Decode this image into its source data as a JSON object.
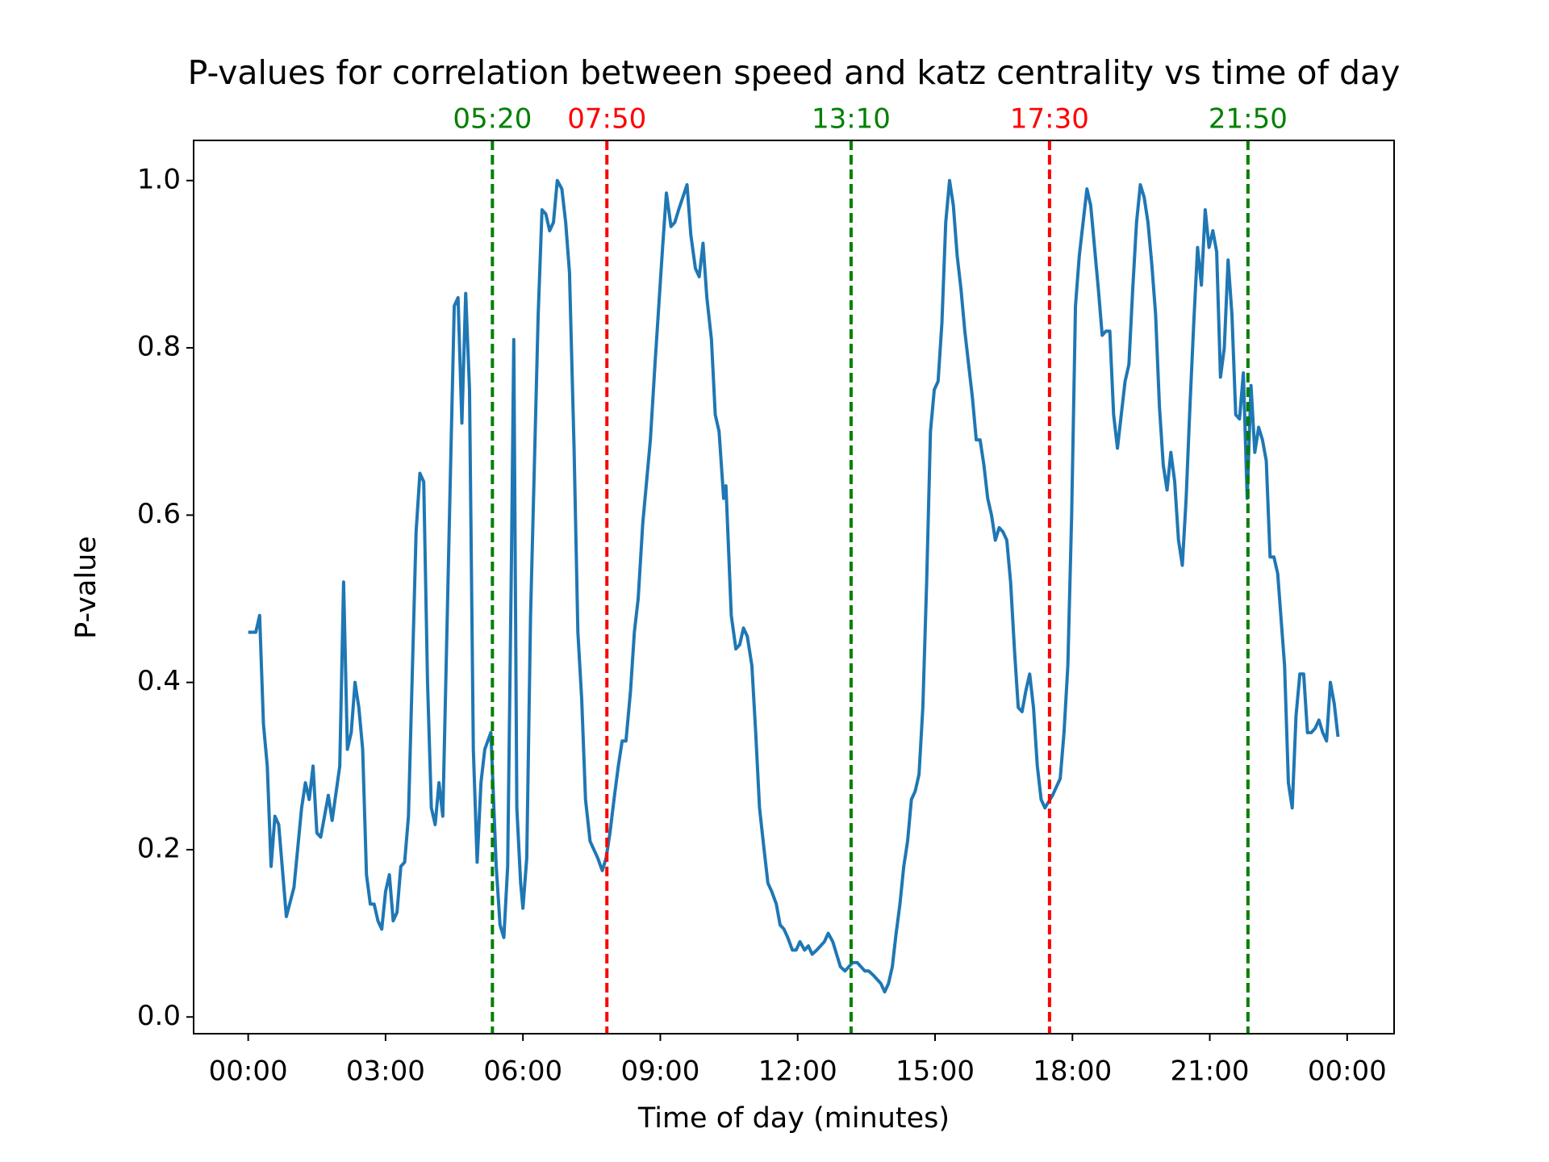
{
  "chart_data": {
    "type": "line",
    "title": "P-values for correlation between speed and katz centrality vs time of day",
    "x_label": "Time of day (minutes)",
    "y_label": "P-value",
    "x": [
      0,
      10,
      15,
      20,
      25,
      30,
      35,
      40,
      50,
      60,
      70,
      75,
      80,
      85,
      90,
      95,
      105,
      110,
      120,
      125,
      130,
      135,
      140,
      145,
      150,
      155,
      160,
      165,
      170,
      175,
      180,
      185,
      190,
      195,
      200,
      205,
      210,
      220,
      225,
      230,
      235,
      240,
      245,
      250,
      255,
      265,
      270,
      275,
      280,
      285,
      290,
      295,
      300,
      305,
      310,
      318,
      325,
      330,
      335,
      340,
      345,
      348,
      352,
      357,
      360,
      365,
      370,
      375,
      380,
      385,
      390,
      395,
      400,
      405,
      411,
      416,
      421,
      427,
      432,
      437,
      442,
      448,
      458,
      464,
      469,
      474,
      480,
      485,
      490,
      495,
      501,
      506,
      511,
      517,
      522,
      527,
      533,
      538,
      543,
      548,
      554,
      559,
      564,
      575,
      580,
      586,
      591,
      596,
      601,
      607,
      612,
      617,
      623,
      626,
      633,
      639,
      644,
      649,
      654,
      660,
      665,
      670,
      676,
      681,
      686,
      692,
      697,
      702,
      707,
      713,
      718,
      723,
      729,
      734,
      739,
      745,
      750,
      755,
      760,
      766,
      771,
      776,
      782,
      787,
      792,
      798,
      803,
      808,
      813,
      819,
      824,
      829,
      834,
      839,
      844,
      849,
      854,
      859,
      864,
      869,
      874,
      879,
      884,
      889,
      894,
      899,
      904,
      909,
      914,
      919,
      924,
      929,
      934,
      939,
      944,
      949,
      954,
      959,
      964,
      969,
      974,
      979,
      984,
      989,
      994,
      999,
      1004,
      1009,
      1014,
      1019,
      1024,
      1029,
      1034,
      1039,
      1044,
      1054,
      1064,
      1069,
      1074,
      1079,
      1084,
      1089,
      1094,
      1099,
      1104,
      1109,
      1114,
      1119,
      1124,
      1129,
      1134,
      1139,
      1144,
      1149,
      1154,
      1159,
      1164,
      1169,
      1174,
      1179,
      1184,
      1189,
      1194,
      1199,
      1204,
      1209,
      1214,
      1219,
      1224,
      1229,
      1234,
      1239,
      1244,
      1249,
      1254,
      1259,
      1264,
      1269,
      1274,
      1279,
      1284,
      1289,
      1294,
      1299,
      1304,
      1309,
      1314,
      1319,
      1324,
      1329,
      1334,
      1339,
      1344,
      1349,
      1358,
      1363,
      1368,
      1373,
      1378,
      1383,
      1388,
      1393,
      1398,
      1403,
      1408,
      1413,
      1418,
      1423,
      1428
    ],
    "series": [
      {
        "color": "#1f77b4",
        "values": [
          0.46,
          0.46,
          0.48,
          0.35,
          0.3,
          0.18,
          0.24,
          0.23,
          0.12,
          0.155,
          0.25,
          0.28,
          0.26,
          0.3,
          0.22,
          0.215,
          0.265,
          0.235,
          0.3,
          0.52,
          0.32,
          0.34,
          0.4,
          0.37,
          0.32,
          0.17,
          0.135,
          0.135,
          0.115,
          0.105,
          0.15,
          0.17,
          0.115,
          0.125,
          0.18,
          0.185,
          0.24,
          0.58,
          0.65,
          0.64,
          0.4,
          0.25,
          0.23,
          0.28,
          0.24,
          0.65,
          0.85,
          0.86,
          0.71,
          0.865,
          0.75,
          0.32,
          0.185,
          0.28,
          0.32,
          0.34,
          0.18,
          0.11,
          0.095,
          0.18,
          0.55,
          0.81,
          0.25,
          0.16,
          0.13,
          0.19,
          0.48,
          0.66,
          0.84,
          0.965,
          0.96,
          0.94,
          0.95,
          1.0,
          0.99,
          0.95,
          0.89,
          0.68,
          0.46,
          0.38,
          0.26,
          0.21,
          0.19,
          0.175,
          0.19,
          0.22,
          0.265,
          0.3,
          0.33,
          0.33,
          0.39,
          0.46,
          0.5,
          0.59,
          0.64,
          0.69,
          0.78,
          0.85,
          0.92,
          0.985,
          0.945,
          0.95,
          0.965,
          0.995,
          0.935,
          0.895,
          0.885,
          0.925,
          0.86,
          0.81,
          0.72,
          0.7,
          0.62,
          0.635,
          0.48,
          0.44,
          0.445,
          0.465,
          0.455,
          0.42,
          0.34,
          0.25,
          0.2,
          0.16,
          0.15,
          0.135,
          0.11,
          0.105,
          0.095,
          0.08,
          0.08,
          0.09,
          0.08,
          0.085,
          0.075,
          0.08,
          0.085,
          0.09,
          0.1,
          0.09,
          0.075,
          0.06,
          0.055,
          0.06,
          0.065,
          0.065,
          0.06,
          0.055,
          0.055,
          0.05,
          0.045,
          0.04,
          0.03,
          0.04,
          0.06,
          0.1,
          0.135,
          0.18,
          0.21,
          0.26,
          0.27,
          0.29,
          0.37,
          0.52,
          0.7,
          0.75,
          0.76,
          0.83,
          0.95,
          1.0,
          0.97,
          0.91,
          0.87,
          0.82,
          0.78,
          0.74,
          0.69,
          0.69,
          0.66,
          0.62,
          0.6,
          0.57,
          0.585,
          0.58,
          0.57,
          0.52,
          0.44,
          0.37,
          0.365,
          0.39,
          0.41,
          0.37,
          0.3,
          0.26,
          0.25,
          0.265,
          0.285,
          0.34,
          0.42,
          0.6,
          0.85,
          0.91,
          0.95,
          0.99,
          0.97,
          0.92,
          0.87,
          0.815,
          0.82,
          0.82,
          0.72,
          0.68,
          0.72,
          0.76,
          0.78,
          0.87,
          0.95,
          0.995,
          0.98,
          0.95,
          0.9,
          0.84,
          0.73,
          0.66,
          0.63,
          0.675,
          0.64,
          0.57,
          0.54,
          0.62,
          0.73,
          0.83,
          0.92,
          0.875,
          0.965,
          0.92,
          0.94,
          0.915,
          0.765,
          0.8,
          0.905,
          0.84,
          0.72,
          0.715,
          0.77,
          0.62,
          0.755,
          0.675,
          0.705,
          0.69,
          0.665,
          0.55,
          0.55,
          0.53,
          0.42,
          0.28,
          0.25,
          0.36,
          0.41,
          0.41,
          0.34,
          0.34,
          0.345,
          0.355,
          0.34,
          0.33,
          0.4,
          0.375,
          0.335
        ]
      }
    ],
    "vlines": [
      {
        "x": 320,
        "label": "05:20",
        "color": "green"
      },
      {
        "x": 470,
        "label": "07:50",
        "color": "red"
      },
      {
        "x": 790,
        "label": "13:10",
        "color": "green"
      },
      {
        "x": 1050,
        "label": "17:30",
        "color": "red"
      },
      {
        "x": 1310,
        "label": "21:50",
        "color": "green"
      }
    ],
    "xlim": [
      -71.5,
      1501.5
    ],
    "ylim": [
      -0.02,
      1.048
    ],
    "xticks": [
      {
        "value": 0,
        "label": "00:00"
      },
      {
        "value": 180,
        "label": "03:00"
      },
      {
        "value": 360,
        "label": "06:00"
      },
      {
        "value": 540,
        "label": "09:00"
      },
      {
        "value": 720,
        "label": "12:00"
      },
      {
        "value": 900,
        "label": "15:00"
      },
      {
        "value": 1080,
        "label": "18:00"
      },
      {
        "value": 1260,
        "label": "21:00"
      },
      {
        "value": 1440,
        "label": "00:00"
      }
    ],
    "yticks": [
      {
        "value": 0,
        "label": "0.0"
      },
      0.2,
      0.4,
      0.6,
      0.8,
      {
        "value": 1,
        "label": "1.0"
      }
    ],
    "grid": false
  }
}
